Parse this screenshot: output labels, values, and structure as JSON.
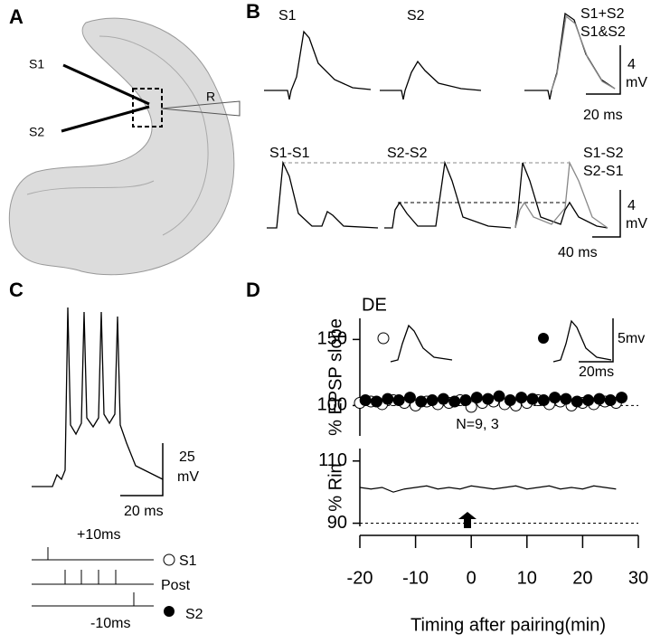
{
  "panels": {
    "A": {
      "letter": "A",
      "s1": "S1",
      "s2": "S2",
      "r": "R"
    },
    "B": {
      "letter": "B",
      "s1": "S1",
      "s2": "S2",
      "sum": "S1+S2",
      "both": "S1&S2",
      "scale_v": "4",
      "scale_v_unit": "mV",
      "scale_t": "20 ms",
      "s1s1": "S1-S1",
      "s2s2": "S2-S2",
      "s1s2": "S1-S2",
      "s2s1": "S2-S1",
      "scale_v2": "4",
      "scale_v2_unit": "mV",
      "scale_t2": "40 ms"
    },
    "C": {
      "letter": "C",
      "scale_v": "25",
      "scale_v_unit": "mV",
      "scale_t": "20 ms",
      "plus": "+10ms",
      "s1": "S1",
      "post": "Post",
      "minus": "-10ms",
      "s2": "S2"
    },
    "D": {
      "letter": "D",
      "de": "DE",
      "scale_v": "5mv",
      "scale_t": "20ms"
    }
  },
  "chart_data": [
    {
      "type": "scatter",
      "ylabel": "% EPSP slope",
      "xlim": [
        -20,
        30
      ],
      "ylim": [
        77,
        166
      ],
      "yticks": [
        100,
        150
      ],
      "grid": false,
      "series": [
        {
          "color": "#ffffff",
          "x": [
            -20,
            -18,
            -16,
            -14,
            -12,
            -10,
            -8,
            -6,
            -4,
            -2,
            0,
            2,
            4,
            6,
            8,
            10,
            12,
            14,
            16,
            18,
            20,
            22,
            24,
            26
          ],
          "values": [
            102,
            103,
            101,
            104,
            102,
            100,
            103,
            101,
            102,
            104,
            99,
            102,
            103,
            101,
            100,
            102,
            104,
            101,
            103,
            100,
            102,
            101,
            103,
            102
          ]
        },
        {
          "color": "#000000",
          "x": [
            -19,
            -17,
            -15,
            -13,
            -11,
            -9,
            -7,
            -5,
            -3,
            -1,
            1,
            3,
            5,
            7,
            9,
            11,
            13,
            15,
            17,
            19,
            21,
            23,
            25,
            27
          ],
          "values": [
            104,
            103,
            105,
            104,
            106,
            103,
            104,
            105,
            103,
            104,
            106,
            105,
            107,
            104,
            106,
            105,
            104,
            106,
            105,
            103,
            104,
            105,
            104,
            106
          ]
        }
      ]
    },
    {
      "type": "line",
      "ylabel": "% Rin",
      "xlabel": "Timing after pairing(min)",
      "annotation": "N=9, 3",
      "xlim": [
        -20,
        30
      ],
      "xticks": [
        -20,
        -10,
        0,
        10,
        20,
        30
      ],
      "ylim": [
        89,
        114
      ],
      "yticks": [
        90,
        110
      ],
      "grid": false,
      "series": [
        {
          "color": "#000000",
          "x": [
            -20,
            -18,
            -16,
            -14,
            -12,
            -10,
            -8,
            -6,
            -4,
            -2,
            0,
            2,
            4,
            6,
            8,
            10,
            12,
            14,
            16,
            18,
            20,
            22,
            24,
            26
          ],
          "values": [
            101.5,
            101,
            101.5,
            100,
            101,
            101.5,
            102,
            101,
            101.5,
            101,
            102,
            101.5,
            101,
            101.5,
            102,
            101,
            101.5,
            102,
            101,
            101.5,
            101,
            102,
            101.5,
            101
          ]
        }
      ]
    }
  ]
}
